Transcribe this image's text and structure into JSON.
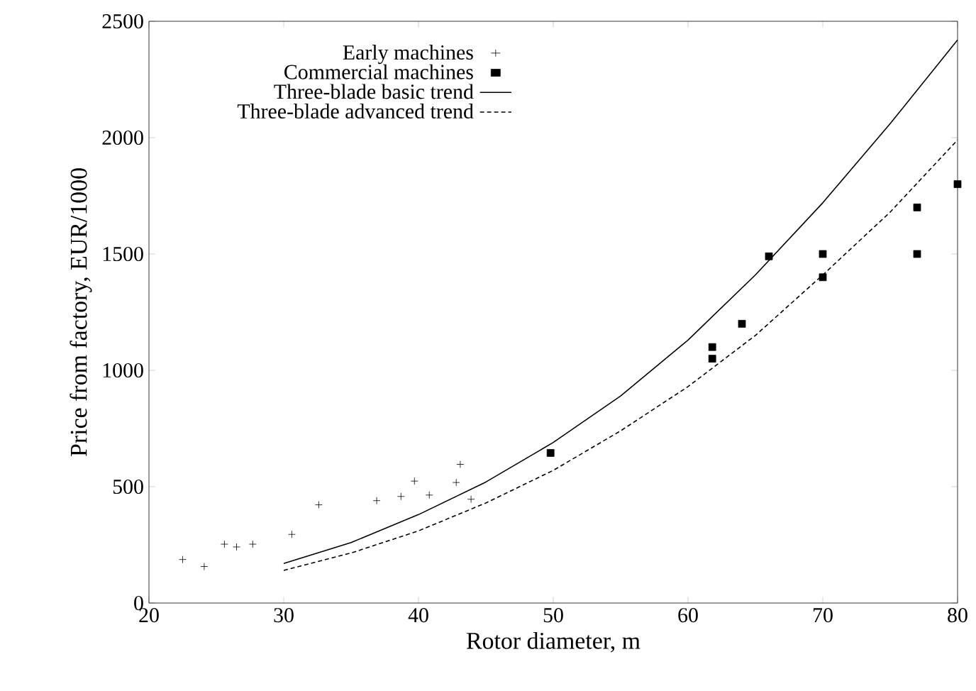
{
  "chart_data": {
    "type": "scatter",
    "xlabel": "Rotor diameter, m",
    "ylabel": "Price from factory, EUR/1000",
    "xlim": [
      20,
      80
    ],
    "ylim": [
      0,
      2500
    ],
    "xticks": [
      20,
      30,
      40,
      50,
      60,
      70,
      80
    ],
    "yticks": [
      0,
      500,
      1000,
      1500,
      2000,
      2500
    ],
    "grid": false,
    "legend": "top left",
    "series": [
      {
        "name": "Early machines",
        "marker": "cross",
        "color": "#000000",
        "x": [
          22.5,
          24.1,
          25.6,
          26.5,
          27.7,
          30.6,
          32.6,
          36.9,
          38.7,
          39.7,
          40.8,
          42.8,
          43.1,
          43.9
        ],
        "values": [
          187,
          157,
          253,
          241,
          253,
          295,
          422,
          440,
          458,
          524,
          464,
          518,
          596,
          446
        ]
      },
      {
        "name": "Commercial machines",
        "marker": "square",
        "color": "#000000",
        "x": [
          49.8,
          61.8,
          61.8,
          64,
          66,
          70,
          70,
          77,
          77,
          80
        ],
        "values": [
          645,
          1050,
          1100,
          1200,
          1490,
          1500,
          1400,
          1700,
          1500,
          1800
        ]
      },
      {
        "name": "Three-blade basic trend",
        "type": "line",
        "marker": "none",
        "line_style": "solid",
        "color": "#000000",
        "x": [
          30,
          35,
          40,
          45,
          50,
          55,
          60,
          65,
          70,
          75,
          80
        ],
        "values": [
          170,
          260,
          380,
          520,
          690,
          890,
          1130,
          1410,
          1720,
          2060,
          2420
        ]
      },
      {
        "name": "Three-blade advanced trend",
        "type": "line",
        "marker": "none",
        "line_style": "dashed",
        "color": "#000000",
        "x": [
          30,
          35,
          40,
          45,
          50,
          55,
          60,
          65,
          70,
          75,
          80
        ],
        "values": [
          140,
          215,
          310,
          430,
          570,
          740,
          930,
          1150,
          1410,
          1680,
          1990
        ]
      }
    ]
  }
}
